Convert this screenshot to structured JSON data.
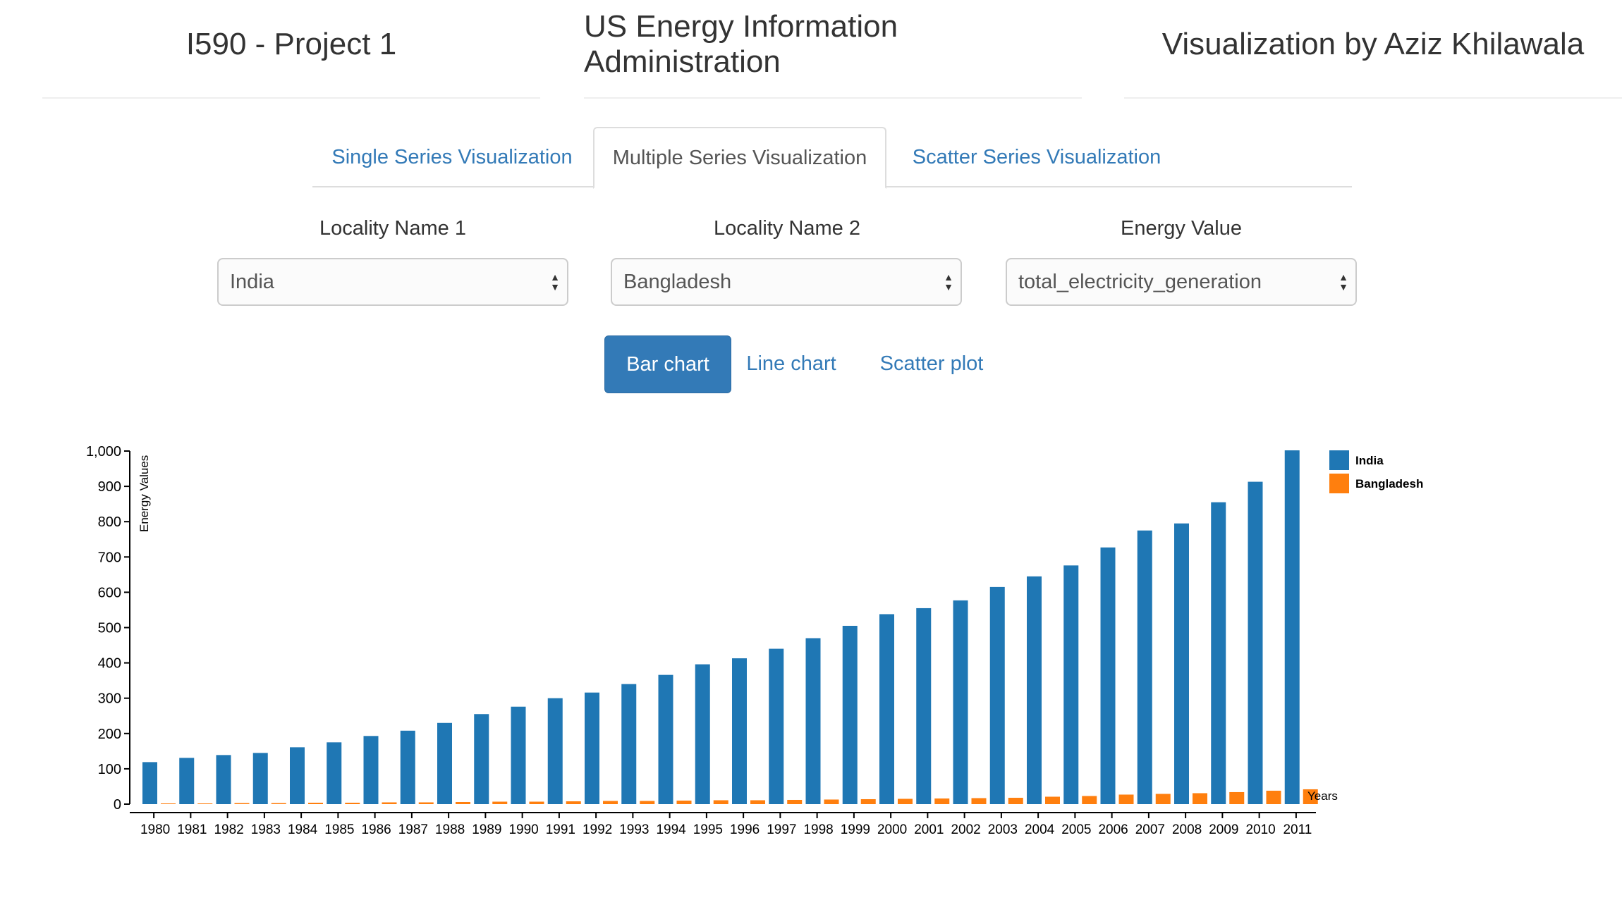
{
  "header": {
    "left": "I590 - Project 1",
    "center": "US Energy Information Administration",
    "right": "Visualization by Aziz Khilawala"
  },
  "tabs": [
    {
      "label": "Single Series Visualization",
      "active": false
    },
    {
      "label": "Multiple Series Visualization",
      "active": true
    },
    {
      "label": "Scatter Series Visualization",
      "active": false
    }
  ],
  "filters": {
    "locality1": {
      "label": "Locality Name 1",
      "value": "India"
    },
    "locality2": {
      "label": "Locality Name 2",
      "value": "Bangladesh"
    },
    "energy": {
      "label": "Energy Value",
      "value": "total_electricity_generation"
    }
  },
  "chart_buttons": {
    "bar": "Bar chart",
    "line": "Line chart",
    "scatter": "Scatter plot",
    "active": "bar"
  },
  "colors": {
    "accent": "#337ab7",
    "series1": "#1f77b4",
    "series2": "#ff7f0e"
  },
  "chart_data": {
    "type": "bar",
    "title": "",
    "xlabel": "Years",
    "ylabel": "Energy Values",
    "ylim": [
      0,
      1000
    ],
    "yticks": [
      0,
      100,
      200,
      300,
      400,
      500,
      600,
      700,
      800,
      900,
      1000
    ],
    "ytick_labels": [
      "0",
      "100",
      "200",
      "300",
      "400",
      "500",
      "600",
      "700",
      "800",
      "900",
      "1,000"
    ],
    "legend_position": "top-right",
    "categories": [
      "1980",
      "1981",
      "1982",
      "1983",
      "1984",
      "1985",
      "1986",
      "1987",
      "1988",
      "1989",
      "1990",
      "1991",
      "1992",
      "1993",
      "1994",
      "1995",
      "1996",
      "1997",
      "1998",
      "1999",
      "2000",
      "2001",
      "2002",
      "2003",
      "2004",
      "2005",
      "2006",
      "2007",
      "2008",
      "2009",
      "2010",
      "2011"
    ],
    "series": [
      {
        "name": "India",
        "values": [
          119,
          131,
          139,
          145,
          161,
          175,
          193,
          208,
          230,
          255,
          276,
          300,
          316,
          340,
          366,
          396,
          413,
          440,
          470,
          505,
          538,
          555,
          577,
          615,
          645,
          676,
          727,
          775,
          795,
          855,
          913,
          1002
        ]
      },
      {
        "name": "Bangladesh",
        "values": [
          2,
          2,
          3,
          3,
          4,
          4,
          5,
          5,
          6,
          7,
          7,
          8,
          9,
          9,
          10,
          11,
          11,
          12,
          13,
          14,
          15,
          16,
          17,
          18,
          21,
          23,
          27,
          29,
          31,
          34,
          38,
          42
        ]
      }
    ]
  }
}
